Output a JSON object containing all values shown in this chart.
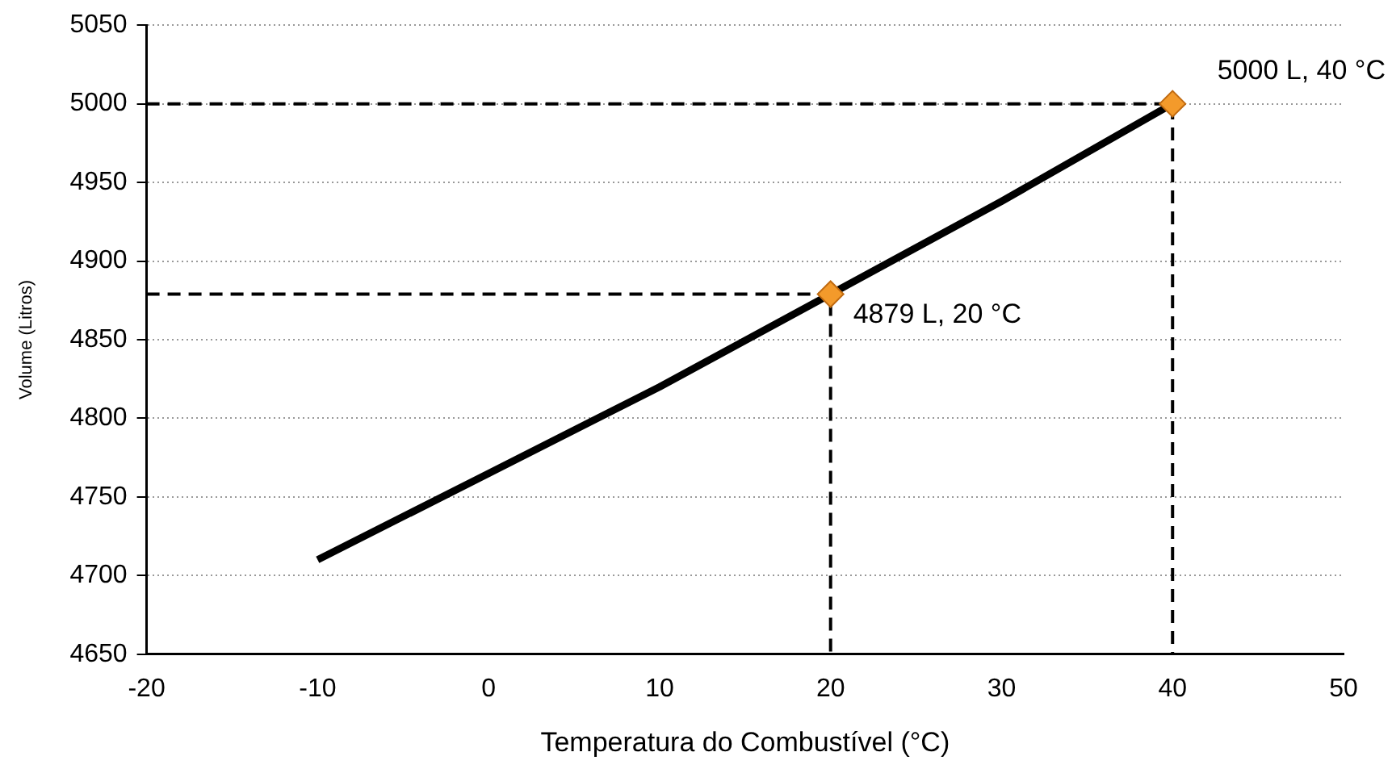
{
  "chart_data": {
    "type": "line",
    "xlabel": "Temperatura do Combustível (°C)",
    "ylabel": "Volume (Litros)",
    "xlim": [
      -20,
      50
    ],
    "xticks": [
      -20,
      -10,
      0,
      10,
      20,
      30,
      40,
      50
    ],
    "ylim": [
      4650,
      5050
    ],
    "yticks": [
      4650,
      4700,
      4750,
      4800,
      4850,
      4900,
      4950,
      5000,
      5050
    ],
    "grid": "y",
    "legend": false,
    "series": [
      {
        "color": "#000000",
        "x": [
          -10,
          0,
          10,
          20,
          30,
          40
        ],
        "values": [
          4710,
          4765,
          4820,
          4879,
          4938,
          5000
        ],
        "marker": "none",
        "line_style": "solid"
      },
      {
        "color": "#000000",
        "x": [
          -20,
          20,
          20
        ],
        "values": [
          4879,
          4879,
          4650
        ],
        "marker": "none",
        "line_style": "dashed"
      },
      {
        "color": "#000000",
        "x": [
          -20,
          40,
          40
        ],
        "values": [
          5000,
          5000,
          4650
        ],
        "marker": "none",
        "line_style": "dashed"
      },
      {
        "type": "scatter",
        "color": "#f39a2b",
        "x": [
          20,
          40
        ],
        "values": [
          4879,
          5000
        ],
        "marker": "diamond"
      }
    ],
    "annotations": [
      {
        "text": "4879 L, 20 °C",
        "x": 20,
        "y": 4879
      },
      {
        "text": "5000 L, 40 °C",
        "x": 40,
        "y": 5000
      }
    ]
  }
}
